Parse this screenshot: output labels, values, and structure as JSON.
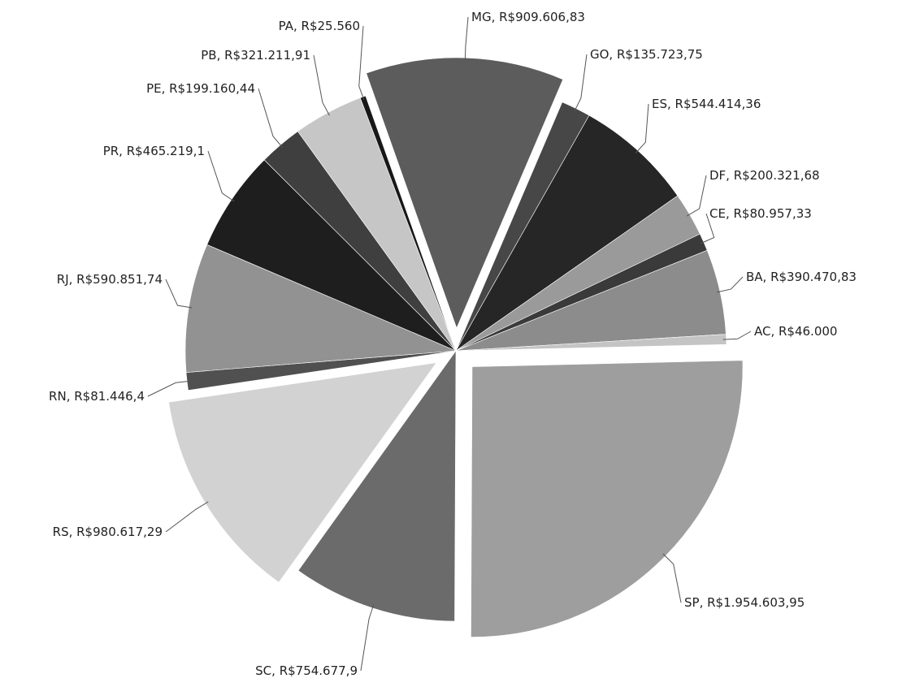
{
  "chart_data": {
    "type": "pie",
    "title": "",
    "slices": [
      {
        "label": "MG, R$909.606,83",
        "name": "MG",
        "value": 909606.83,
        "color": "#5c5c5c",
        "exploded": true
      },
      {
        "label": "GO, R$135.723,75",
        "name": "GO",
        "value": 135723.75,
        "color": "#474747",
        "exploded": false
      },
      {
        "label": "ES, R$544.414,36",
        "name": "ES",
        "value": 544414.36,
        "color": "#262626",
        "exploded": false
      },
      {
        "label": "DF, R$200.321,68",
        "name": "DF",
        "value": 200321.68,
        "color": "#9a9a9a",
        "exploded": false
      },
      {
        "label": "CE, R$80.957,33",
        "name": "CE",
        "value": 80957.33,
        "color": "#3a3a3a",
        "exploded": false
      },
      {
        "label": "BA, R$390.470,83",
        "name": "BA",
        "value": 390470.83,
        "color": "#8c8c8c",
        "exploded": false
      },
      {
        "label": "AC, R$46.000",
        "name": "AC",
        "value": 46000,
        "color": "#c4c4c4",
        "exploded": false
      },
      {
        "label": "SP, R$1.954.603,95",
        "name": "SP",
        "value": 1954603.95,
        "color": "#9e9e9e",
        "exploded": true
      },
      {
        "label": "SC, R$754.677,9",
        "name": "SC",
        "value": 754677.9,
        "color": "#6b6b6b",
        "exploded": false
      },
      {
        "label": "RS, R$980.617,29",
        "name": "RS",
        "value": 980617.29,
        "color": "#d2d2d2",
        "exploded": true
      },
      {
        "label": "RN, R$81.446,4",
        "name": "RN",
        "value": 81446.4,
        "color": "#505050",
        "exploded": false
      },
      {
        "label": "RJ, R$590.851,74",
        "name": "RJ",
        "value": 590851.74,
        "color": "#929292",
        "exploded": false
      },
      {
        "label": "PR, R$465.219,1",
        "name": "PR",
        "value": 465219.1,
        "color": "#1e1e1e",
        "exploded": false
      },
      {
        "label": "PE, R$199.160,44",
        "name": "PE",
        "value": 199160.44,
        "color": "#3f3f3f",
        "exploded": false
      },
      {
        "label": "PB, R$321.211,91",
        "name": "PB",
        "value": 321211.91,
        "color": "#c6c6c6",
        "exploded": false
      },
      {
        "label": "PA, R$25.560",
        "name": "PA",
        "value": 25560,
        "color": "#181818",
        "exploded": false
      }
    ]
  }
}
